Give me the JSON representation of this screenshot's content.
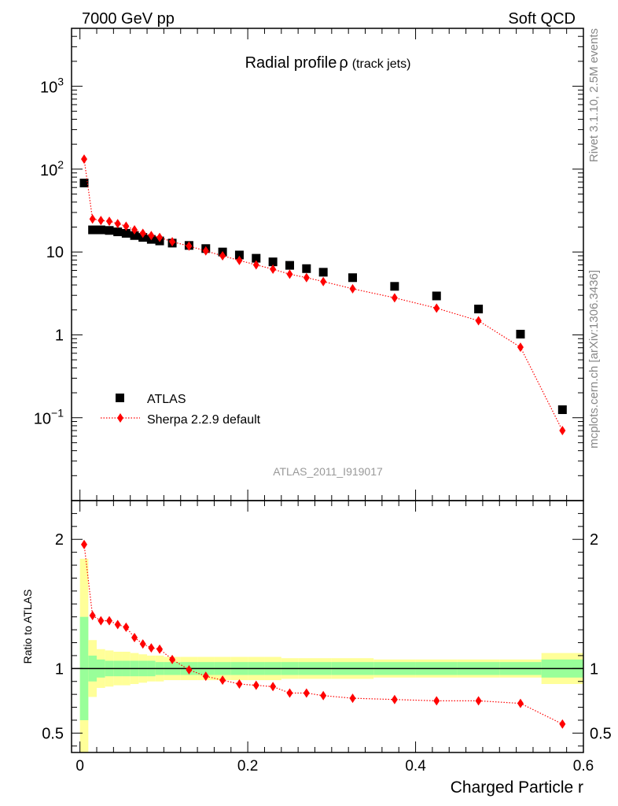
{
  "header": {
    "left": "7000 GeV pp",
    "right": "Soft QCD"
  },
  "side_labels": {
    "rivet": "Rivet 3.1.10,  2.5M events",
    "mcplots": "mcplots.cern.ch [arXiv:1306.3436]"
  },
  "colors": {
    "atlas": "#000000",
    "sherpa": "#ff0000",
    "band_inner": "#99ff99",
    "band_outer": "#ffff99"
  },
  "chart_data": [
    {
      "type": "scatter",
      "title": "Radial profile",
      "title_symbol": "ρ",
      "title_suffix": "(track jets)",
      "analysis_label": "ATLAS_2011_I919017",
      "yscale": "log",
      "ylim": [
        0.01,
        5000
      ],
      "y_ticks": [
        {
          "value": 0.1,
          "base": "10",
          "exp": "−1"
        },
        {
          "value": 1,
          "label": "1"
        },
        {
          "value": 10,
          "label": "10"
        },
        {
          "value": 100,
          "base": "10",
          "exp": "2"
        },
        {
          "value": 1000,
          "base": "10",
          "exp": "3"
        }
      ],
      "legend": "left",
      "series": [
        {
          "name": "ATLAS",
          "marker": "square",
          "x": [
            0.005,
            0.015,
            0.025,
            0.035,
            0.045,
            0.055,
            0.065,
            0.075,
            0.085,
            0.095,
            0.11,
            0.13,
            0.15,
            0.17,
            0.19,
            0.21,
            0.23,
            0.25,
            0.27,
            0.29,
            0.325,
            0.375,
            0.425,
            0.475,
            0.525,
            0.575
          ],
          "y": [
            68,
            18.5,
            18.5,
            18.2,
            17.5,
            16.8,
            15.8,
            15.0,
            14.2,
            13.6,
            12.8,
            12.0,
            11.0,
            10.0,
            9.2,
            8.4,
            7.6,
            6.9,
            6.3,
            5.7,
            4.9,
            3.85,
            2.95,
            2.05,
            1.02,
            0.125
          ]
        },
        {
          "name": "Sherpa 2.2.9 default",
          "marker": "diamond",
          "line": "dotted",
          "x": [
            0.005,
            0.015,
            0.025,
            0.035,
            0.045,
            0.055,
            0.065,
            0.075,
            0.085,
            0.095,
            0.11,
            0.13,
            0.15,
            0.17,
            0.19,
            0.21,
            0.23,
            0.25,
            0.27,
            0.29,
            0.325,
            0.375,
            0.425,
            0.475,
            0.525,
            0.575
          ],
          "y": [
            132,
            25,
            24,
            23.5,
            22,
            20.5,
            18.5,
            16.8,
            15.8,
            15.0,
            13.3,
            11.8,
            10.3,
            9.0,
            7.9,
            7.0,
            6.2,
            5.4,
            4.9,
            4.4,
            3.6,
            2.8,
            2.1,
            1.48,
            0.71,
            0.07
          ]
        }
      ]
    },
    {
      "type": "scatter",
      "ylabel": "Ratio to ATLAS",
      "xlabel": "Charged Particle r",
      "ylim": [
        0.35,
        2.3
      ],
      "xlim": [
        -0.01,
        0.6
      ],
      "x_ticks": [
        0,
        0.2,
        0.4,
        0.6
      ],
      "y_ticks": [
        0.5,
        1,
        2
      ],
      "reference_line": 1,
      "bands": {
        "edges": [
          0,
          0.01,
          0.02,
          0.03,
          0.04,
          0.05,
          0.06,
          0.07,
          0.08,
          0.09,
          0.1,
          0.12,
          0.14,
          0.16,
          0.18,
          0.2,
          0.22,
          0.24,
          0.26,
          0.28,
          0.3,
          0.35,
          0.4,
          0.45,
          0.5,
          0.55,
          0.6
        ],
        "inner": [
          0.4,
          0.1,
          0.07,
          0.06,
          0.06,
          0.06,
          0.06,
          0.06,
          0.06,
          0.05,
          0.05,
          0.05,
          0.05,
          0.05,
          0.05,
          0.05,
          0.05,
          0.05,
          0.05,
          0.05,
          0.05,
          0.05,
          0.05,
          0.05,
          0.05,
          0.07
        ],
        "outer": [
          0.85,
          0.22,
          0.15,
          0.14,
          0.13,
          0.13,
          0.12,
          0.11,
          0.1,
          0.1,
          0.09,
          0.09,
          0.09,
          0.09,
          0.09,
          0.09,
          0.09,
          0.08,
          0.08,
          0.08,
          0.08,
          0.07,
          0.07,
          0.07,
          0.07,
          0.12
        ]
      },
      "series": [
        {
          "name": "Sherpa 2.2.9 default",
          "marker": "diamond",
          "line": "dotted",
          "x": [
            0.005,
            0.015,
            0.025,
            0.035,
            0.045,
            0.055,
            0.065,
            0.075,
            0.085,
            0.095,
            0.11,
            0.13,
            0.15,
            0.17,
            0.19,
            0.21,
            0.23,
            0.25,
            0.27,
            0.29,
            0.325,
            0.375,
            0.425,
            0.475,
            0.525,
            0.575
          ],
          "y": [
            1.96,
            1.41,
            1.37,
            1.37,
            1.34,
            1.32,
            1.24,
            1.19,
            1.16,
            1.15,
            1.07,
            0.99,
            0.94,
            0.91,
            0.88,
            0.87,
            0.86,
            0.81,
            0.81,
            0.79,
            0.77,
            0.76,
            0.75,
            0.75,
            0.73,
            0.57
          ]
        }
      ]
    }
  ]
}
